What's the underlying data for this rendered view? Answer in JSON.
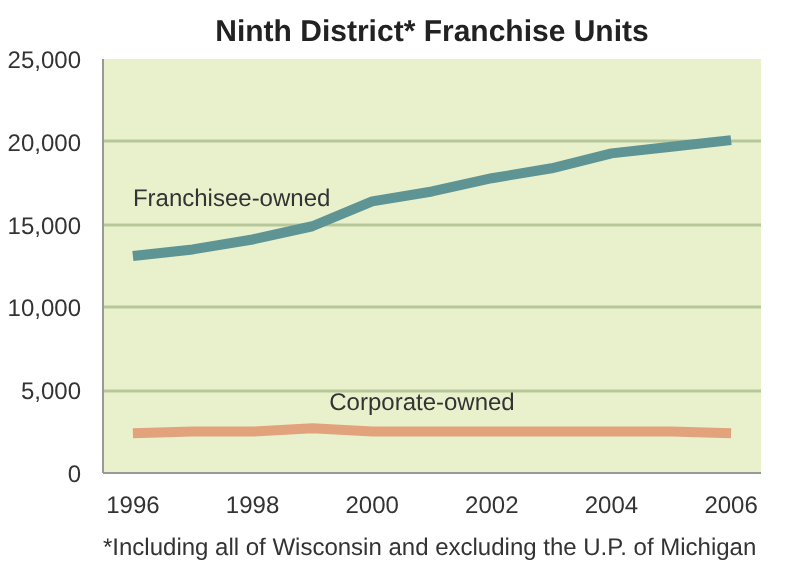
{
  "chart_data": {
    "type": "line",
    "title": "Ninth District* Franchise Units",
    "x": [
      1996,
      1997,
      1998,
      1999,
      2000,
      2001,
      2002,
      2003,
      2004,
      2005,
      2006
    ],
    "series": [
      {
        "name": "Franchisee-owned",
        "color": "#5e9494",
        "values": [
          13100,
          13500,
          14100,
          14900,
          16400,
          17000,
          17800,
          18400,
          19300,
          19700,
          20100
        ]
      },
      {
        "name": "Corporate-owned",
        "color": "#e2a27c",
        "values": [
          2400,
          2500,
          2500,
          2700,
          2500,
          2500,
          2500,
          2500,
          2500,
          2500,
          2400
        ]
      }
    ],
    "xlim": [
      1995.5,
      2006.5
    ],
    "xticks": [
      1996,
      1998,
      2000,
      2002,
      2004,
      2006
    ],
    "ylim": [
      0,
      25000
    ],
    "yticks": [
      {
        "value": 0,
        "label": "0"
      },
      {
        "value": 5000,
        "label": "5,000"
      },
      {
        "value": 10000,
        "label": "10,000"
      },
      {
        "value": 15000,
        "label": "15,000"
      },
      {
        "value": 20000,
        "label": "20,000"
      },
      {
        "value": 25000,
        "label": "25,000"
      }
    ],
    "grid": "y",
    "line_style": "solid",
    "marker": "none",
    "legend": false,
    "annotations": [
      "*Including all of Wisconsin and excluding the U.P. of Michigan"
    ]
  }
}
